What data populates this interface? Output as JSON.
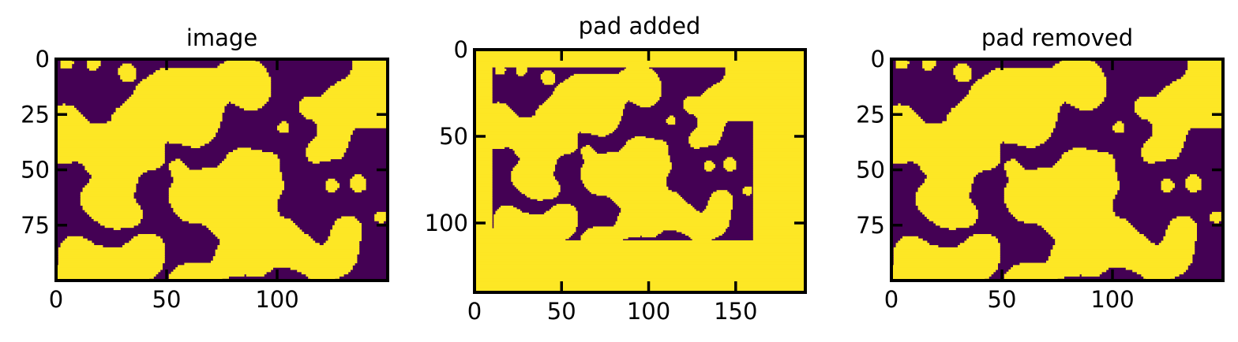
{
  "colors": {
    "background": "#440154",
    "foreground": "#fde725",
    "axes": "#000000"
  },
  "chart_data": [
    {
      "type": "heatmap",
      "title": "image",
      "colormap": "viridis (binary)",
      "xlim": [
        0,
        150
      ],
      "ylim": [
        100,
        0
      ],
      "xticks": [
        "0",
        "50",
        "100"
      ],
      "yticks": [
        "0",
        "25",
        "50",
        "75"
      ],
      "grid": false,
      "ticks_direction": "in",
      "image_size": [
        150,
        100
      ],
      "phases": "random blob binary field",
      "seed": 7
    },
    {
      "type": "heatmap",
      "title": "pad added",
      "colormap": "viridis (binary)",
      "xlim": [
        0,
        190
      ],
      "ylim": [
        140,
        0
      ],
      "xticks": [
        "0",
        "50",
        "100",
        "150"
      ],
      "yticks": [
        "0",
        "50",
        "100"
      ],
      "grid": false,
      "ticks_direction": "in",
      "image_size": [
        190,
        140
      ],
      "padding_value": 1,
      "inner_image_extent": {
        "x": [
          10,
          160
        ],
        "y": [
          10,
          110
        ]
      },
      "seed": 7
    },
    {
      "type": "heatmap",
      "title": "pad removed",
      "colormap": "viridis (binary)",
      "xlim": [
        0,
        150
      ],
      "ylim": [
        100,
        0
      ],
      "xticks": [
        "0",
        "50",
        "100"
      ],
      "yticks": [
        "0",
        "25",
        "50",
        "75"
      ],
      "grid": false,
      "ticks_direction": "in",
      "image_size": [
        150,
        100
      ],
      "seed": 7
    }
  ]
}
